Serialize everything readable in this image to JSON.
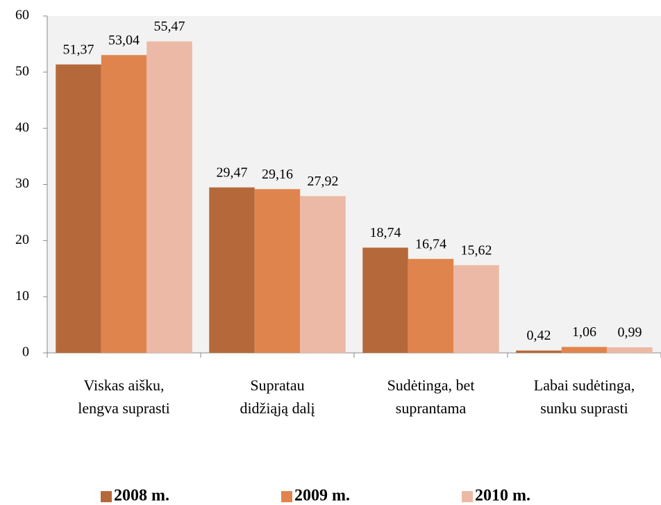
{
  "chart_data": {
    "type": "bar",
    "categories": [
      "Viskas aišku,\nlengva suprasti",
      "Supratau\ndidžiąją dalį",
      "Sudėtinga, bet\nsuprantama",
      "Labai sudėtinga,\nsunku suprasti"
    ],
    "series": [
      {
        "name": "2008 m.",
        "color": "#b5693a",
        "values": [
          51.37,
          29.47,
          18.74,
          0.42
        ],
        "value_labels": [
          "51,37",
          "29,47",
          "18,74",
          "0,42"
        ]
      },
      {
        "name": "2009 m.",
        "color": "#e0844d",
        "values": [
          53.04,
          29.16,
          16.74,
          1.06
        ],
        "value_labels": [
          "53,04",
          "29,16",
          "16,74",
          "1,06"
        ]
      },
      {
        "name": "2010 m.",
        "color": "#ebb9a5",
        "values": [
          55.47,
          27.92,
          15.62,
          0.99
        ],
        "value_labels": [
          "55,47",
          "27,92",
          "15,62",
          "0,99"
        ]
      }
    ],
    "ylim": [
      0,
      60
    ],
    "yticks": [
      0,
      10,
      20,
      30,
      40,
      50,
      60
    ],
    "legend": "bottom"
  }
}
